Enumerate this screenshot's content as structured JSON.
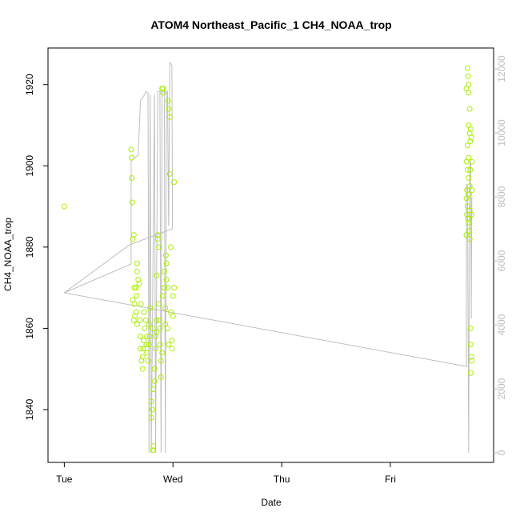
{
  "chart_data": {
    "type": "scatter",
    "title": "ATOM4 Northeast_Pacific_1 CH4_NOAA_trop",
    "xlabel": "Date",
    "ylabel": "CH4_NOAA_trop",
    "x_ticks": [
      "Tue",
      "Wed",
      "Thu",
      "Fri"
    ],
    "y_ticks": [
      1840,
      1860,
      1880,
      1900,
      1920
    ],
    "y_ticks_right": [
      0,
      2000,
      4000,
      6000,
      8000,
      10000,
      12000
    ],
    "x_range_days": [
      -0.15,
      3.95
    ],
    "y_range": [
      1827,
      1929
    ],
    "y2_range": [
      -300,
      12650
    ],
    "colors": {
      "points": "#aaee00",
      "line": "#bfbfbf",
      "axis": "#000000",
      "right_axis": "#bdbdbd"
    },
    "series": [
      {
        "type": "scatter",
        "points": [
          [
            0.0,
            1890
          ],
          [
            0.615,
            1904
          ],
          [
            0.62,
            1902
          ],
          [
            0.62,
            1897
          ],
          [
            0.625,
            1891
          ],
          [
            0.63,
            1882
          ],
          [
            0.64,
            1883
          ],
          [
            0.63,
            1867
          ],
          [
            0.645,
            1866
          ],
          [
            0.64,
            1862
          ],
          [
            0.65,
            1863
          ],
          [
            0.66,
            1870
          ],
          [
            0.67,
            1874
          ],
          [
            0.67,
            1876
          ],
          [
            0.68,
            1872
          ],
          [
            0.69,
            1871
          ],
          [
            0.66,
            1864
          ],
          [
            0.67,
            1861
          ],
          [
            0.7,
            1858
          ],
          [
            0.7,
            1855
          ],
          [
            0.71,
            1852
          ],
          [
            0.72,
            1850
          ],
          [
            0.72,
            1853
          ],
          [
            0.73,
            1857
          ],
          [
            0.74,
            1860
          ],
          [
            0.75,
            1862
          ],
          [
            0.76,
            1858
          ],
          [
            0.76,
            1854
          ],
          [
            0.77,
            1852
          ],
          [
            0.78,
            1856
          ],
          [
            0.78,
            1861
          ],
          [
            0.79,
            1865
          ],
          [
            0.8,
            1842
          ],
          [
            0.8,
            1838
          ],
          [
            0.81,
            1840
          ],
          [
            0.815,
            1830
          ],
          [
            0.82,
            1831
          ],
          [
            0.82,
            1845
          ],
          [
            0.83,
            1847
          ],
          [
            0.83,
            1850
          ],
          [
            0.84,
            1855
          ],
          [
            0.84,
            1858
          ],
          [
            0.85,
            1862
          ],
          [
            0.85,
            1873
          ],
          [
            0.86,
            1882
          ],
          [
            0.86,
            1883
          ],
          [
            0.87,
            1880
          ],
          [
            0.87,
            1866
          ],
          [
            0.88,
            1860
          ],
          [
            0.88,
            1856
          ],
          [
            0.89,
            1852
          ],
          [
            0.89,
            1848
          ],
          [
            0.9,
            1854
          ],
          [
            0.9,
            1919
          ],
          [
            0.91,
            1919
          ],
          [
            0.91,
            1918
          ],
          [
            0.92,
            1874
          ],
          [
            0.92,
            1870
          ],
          [
            0.93,
            1865
          ],
          [
            0.93,
            1861
          ],
          [
            0.94,
            1872
          ],
          [
            0.94,
            1876
          ],
          [
            0.95,
            1870
          ],
          [
            0.95,
            1860
          ],
          [
            0.96,
            1856
          ],
          [
            0.96,
            1914
          ],
          [
            0.97,
            1912
          ],
          [
            0.97,
            1898
          ],
          [
            0.98,
            1880
          ],
          [
            0.98,
            1864
          ],
          [
            0.99,
            1857
          ],
          [
            0.99,
            1855
          ],
          [
            1.0,
            1863
          ],
          [
            1.0,
            1868
          ],
          [
            1.01,
            1896
          ],
          [
            1.01,
            1870
          ],
          [
            0.955,
            1916
          ],
          [
            0.935,
            1878
          ],
          [
            0.905,
            1868
          ],
          [
            0.875,
            1862
          ],
          [
            0.845,
            1859
          ],
          [
            0.815,
            1860
          ],
          [
            0.785,
            1858
          ],
          [
            0.755,
            1856
          ],
          [
            0.725,
            1855
          ],
          [
            0.695,
            1862
          ],
          [
            0.665,
            1868
          ],
          [
            0.645,
            1870
          ],
          [
            0.705,
            1866
          ],
          [
            0.735,
            1864
          ],
          [
            3.7,
            1919
          ],
          [
            3.71,
            1924
          ],
          [
            3.715,
            1922
          ],
          [
            3.72,
            1920
          ],
          [
            3.72,
            1918
          ],
          [
            3.73,
            1914
          ],
          [
            3.72,
            1910
          ],
          [
            3.73,
            1908
          ],
          [
            3.735,
            1906
          ],
          [
            3.71,
            1905
          ],
          [
            3.7,
            1901
          ],
          [
            3.71,
            1899
          ],
          [
            3.72,
            1897
          ],
          [
            3.73,
            1895
          ],
          [
            3.7,
            1892
          ],
          [
            3.71,
            1890
          ],
          [
            3.705,
            1888
          ],
          [
            3.72,
            1886
          ],
          [
            3.725,
            1884
          ],
          [
            3.7,
            1883
          ],
          [
            3.73,
            1882
          ],
          [
            3.74,
            1909
          ],
          [
            3.745,
            1907
          ],
          [
            3.75,
            1901
          ],
          [
            3.75,
            1894
          ],
          [
            3.745,
            1888
          ],
          [
            3.74,
            1860
          ],
          [
            3.74,
            1856
          ],
          [
            3.745,
            1853
          ],
          [
            3.75,
            1852
          ],
          [
            3.74,
            1849
          ],
          [
            3.715,
            1887
          ],
          [
            3.725,
            1893
          ],
          [
            3.735,
            1899
          ],
          [
            3.705,
            1894
          ],
          [
            3.72,
            1902
          ],
          [
            3.73,
            1889
          ]
        ]
      },
      {
        "type": "line",
        "axis": "right",
        "points": [
          [
            0.0,
            5000
          ],
          [
            0.615,
            5900
          ],
          [
            0.615,
            9100
          ],
          [
            0.64,
            9200
          ],
          [
            0.68,
            9300
          ],
          [
            0.7,
            11000
          ],
          [
            0.74,
            11200
          ],
          [
            0.75,
            11300
          ],
          [
            0.77,
            11250
          ],
          [
            0.78,
            0
          ],
          [
            0.79,
            11200
          ],
          [
            0.8,
            0
          ],
          [
            0.83,
            11200
          ],
          [
            0.84,
            0
          ],
          [
            0.86,
            11300
          ],
          [
            0.88,
            11300
          ],
          [
            0.89,
            0
          ],
          [
            0.9,
            11250
          ],
          [
            0.92,
            11300
          ],
          [
            0.93,
            0
          ],
          [
            0.94,
            11300
          ],
          [
            0.95,
            11300
          ],
          [
            0.96,
            7100
          ],
          [
            0.97,
            12200
          ],
          [
            0.99,
            12100
          ],
          [
            0.995,
            7000
          ],
          [
            0.6,
            6500
          ],
          [
            0.0,
            5000
          ],
          [
            3.7,
            2700
          ],
          [
            3.7,
            8400
          ],
          [
            3.71,
            8200
          ],
          [
            3.72,
            0
          ],
          [
            3.73,
            9000
          ],
          [
            3.74,
            9100
          ],
          [
            3.745,
            4200
          ],
          [
            3.75,
            8000
          ]
        ]
      }
    ]
  }
}
